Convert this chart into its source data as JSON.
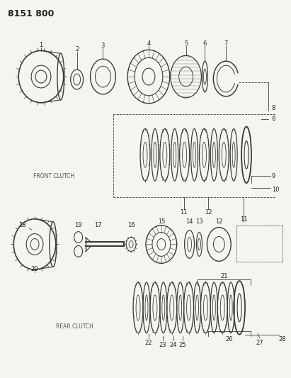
{
  "title": "8151 800",
  "bg": "#f5f5f0",
  "lc": "#3a3a3a",
  "tc": "#222222",
  "front_clutch_label": "FRONT CLUTCH",
  "rear_clutch_label": "REAR CLUTCH",
  "fig_w": 4.11,
  "fig_h": 5.33,
  "dpi": 100
}
